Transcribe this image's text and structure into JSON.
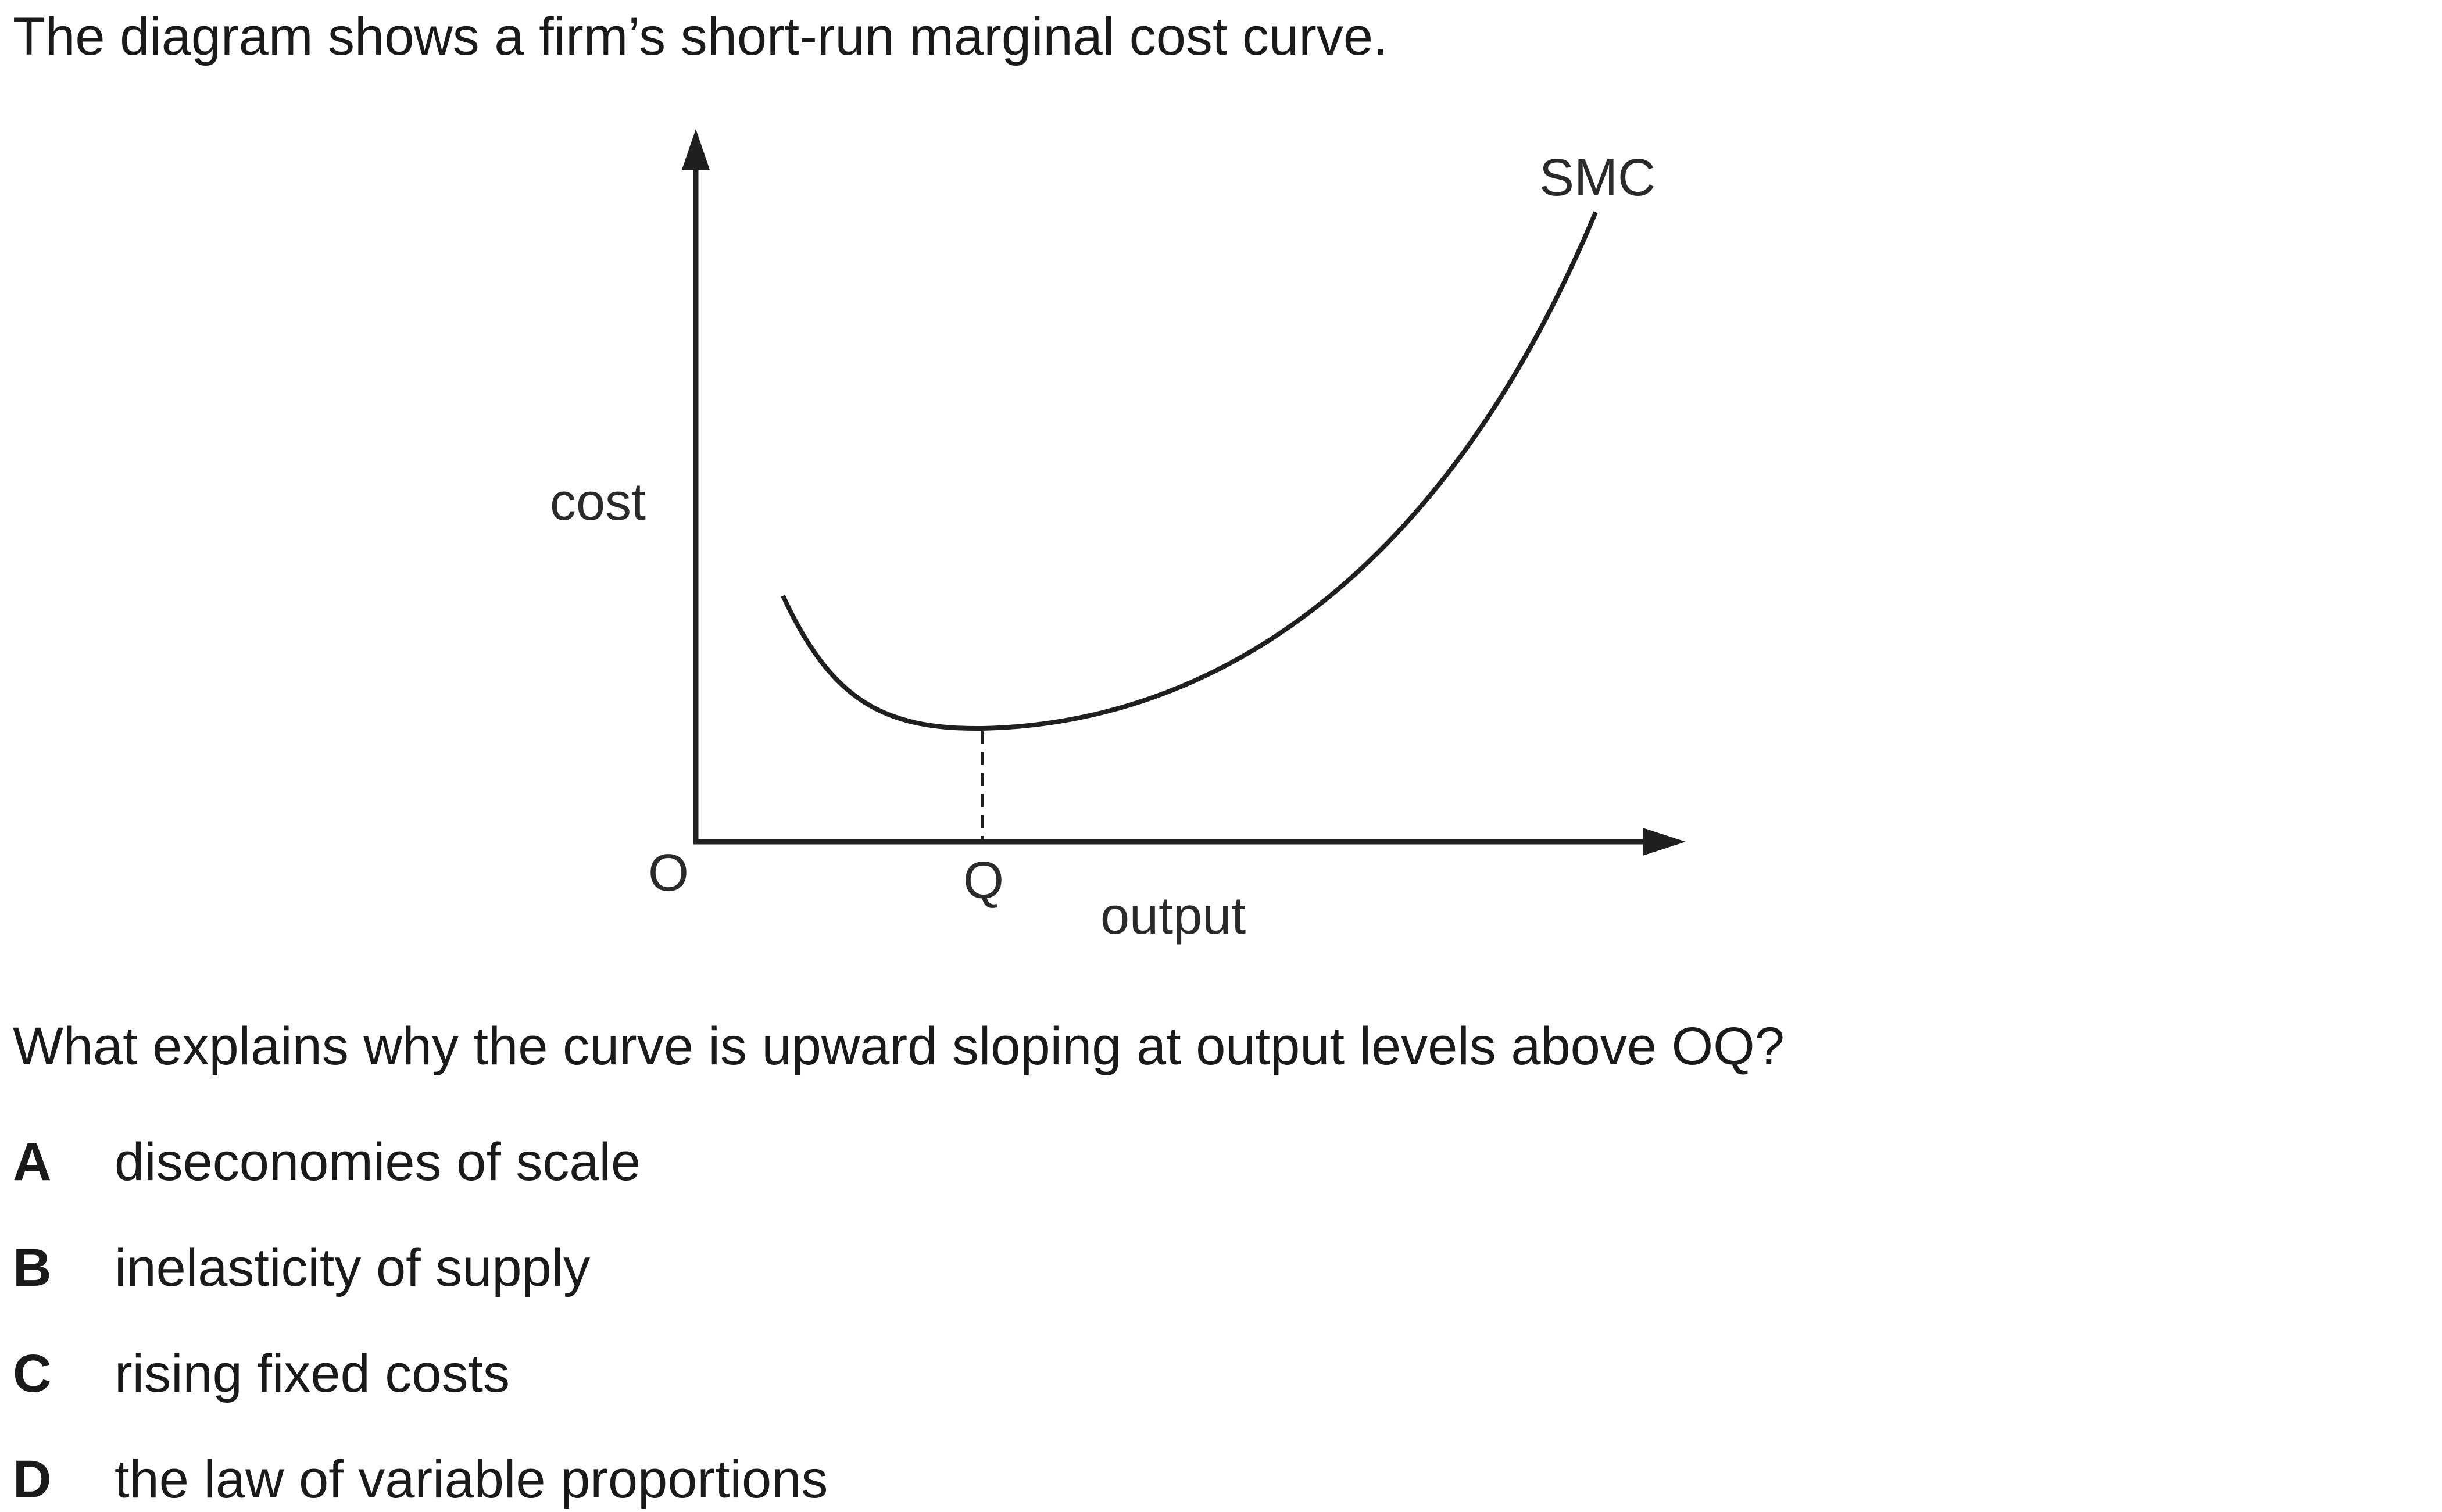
{
  "intro": "The diagram shows a firm’s short-run marginal cost curve.",
  "diagram": {
    "y_axis_label": "cost",
    "x_axis_label": "output",
    "origin_label": "O",
    "q_label": "Q",
    "curve_label": "SMC"
  },
  "question": "What explains why the curve is upward sloping at output levels above OQ?",
  "options": [
    {
      "letter": "A",
      "text": "diseconomies of scale"
    },
    {
      "letter": "B",
      "text": "inelasticity of supply"
    },
    {
      "letter": "C",
      "text": "rising fixed costs"
    },
    {
      "letter": "D",
      "text": "the law of variable proportions"
    }
  ]
}
